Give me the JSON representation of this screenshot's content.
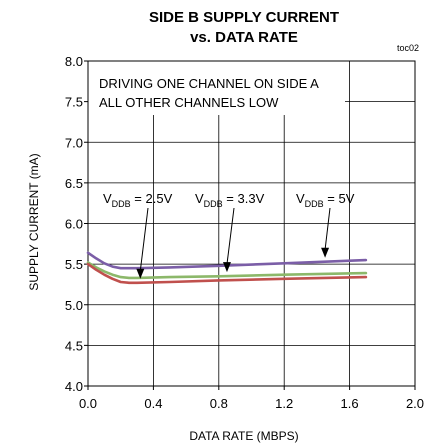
{
  "chart_data": {
    "type": "line",
    "title": "SIDE B SUPPLY CURRENT",
    "subtitle": "vs. DATA RATE",
    "tag": "toc02",
    "xlabel": "DATA RATE (MBPS)",
    "ylabel": "SUPPLY CURRENT (mA)",
    "xlim": [
      0.0,
      2.0
    ],
    "ylim": [
      4.0,
      8.0
    ],
    "xticks": [
      "0.0",
      "0.4",
      "0.8",
      "1.2",
      "1.6",
      "2.0"
    ],
    "yticks": [
      "4.0",
      "4.5",
      "5.0",
      "5.5",
      "6.0",
      "6.5",
      "7.0",
      "7.5",
      "8.0"
    ],
    "grid": true,
    "annotations": [
      "DRIVING ONE CHANNEL ON SIDE A",
      "ALL OTHER CHANNELS LOW"
    ],
    "series": [
      {
        "label": {
          "pre": "V",
          "sub": "DDB",
          "post": " = 5V"
        },
        "color": "#7b5ea7",
        "x": [
          0.0,
          0.05,
          0.1,
          0.15,
          0.2,
          0.3,
          0.5,
          0.8,
          1.2,
          1.7
        ],
        "y": [
          5.64,
          5.57,
          5.51,
          5.47,
          5.45,
          5.45,
          5.46,
          5.48,
          5.51,
          5.55
        ]
      },
      {
        "label": {
          "pre": "V",
          "sub": "DDB",
          "post": " = 3.3V"
        },
        "color": "#8cb86a",
        "x": [
          0.0,
          0.05,
          0.1,
          0.15,
          0.2,
          0.25,
          0.3,
          0.5,
          0.8,
          1.2,
          1.7
        ],
        "y": [
          5.52,
          5.46,
          5.41,
          5.37,
          5.34,
          5.33,
          5.33,
          5.34,
          5.35,
          5.37,
          5.39
        ]
      },
      {
        "label": {
          "pre": "V",
          "sub": "DDB",
          "post": " = 2.5V"
        },
        "color": "#c0504d",
        "x": [
          0.0,
          0.05,
          0.1,
          0.15,
          0.2,
          0.25,
          0.3,
          0.5,
          0.8,
          1.2,
          1.7
        ],
        "y": [
          5.5,
          5.43,
          5.37,
          5.32,
          5.28,
          5.27,
          5.27,
          5.28,
          5.3,
          5.32,
          5.34
        ]
      }
    ]
  }
}
